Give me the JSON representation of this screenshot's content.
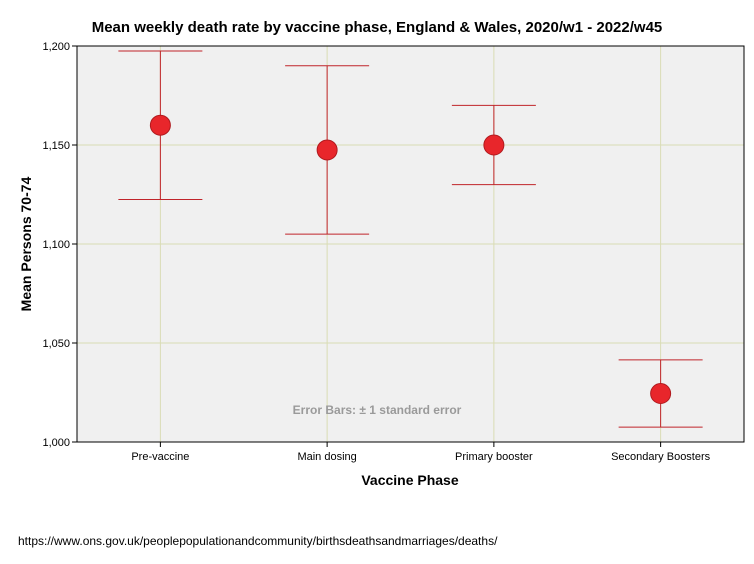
{
  "chart_data": {
    "type": "scatter",
    "title": "Mean weekly death rate by vaccine phase, England & Wales, 2020/w1 - 2022/w45",
    "xlabel": "Vaccine Phase",
    "ylabel": "Mean Persons 70-74",
    "categories": [
      "Pre-vaccine",
      "Main dosing",
      "Primary booster",
      "Secondary Boosters"
    ],
    "means": [
      1160,
      1147.5,
      1150,
      1024.5
    ],
    "error_upper": [
      1197.5,
      1190,
      1170,
      1041.5
    ],
    "error_lower": [
      1122.5,
      1105,
      1130,
      1007.5
    ],
    "ylim": [
      1000,
      1200
    ],
    "yticks": [
      1000,
      1050,
      1100,
      1150,
      1200
    ],
    "ytick_labels": [
      "1,000",
      "1,050",
      "1,100",
      "1,150",
      "1,200"
    ],
    "grid": true,
    "note": "Error Bars: ± 1 standard error",
    "colors": {
      "marker": "#e8262b",
      "marker_edge": "#b01a1e",
      "bar": "#c0242a",
      "grid": "#d9dcb4",
      "plot_bg": "#f0f0f0"
    }
  },
  "source": "https://www.ons.gov.uk/peoplepopulationandcommunity/birthsdeathsandmarriages/deaths/"
}
